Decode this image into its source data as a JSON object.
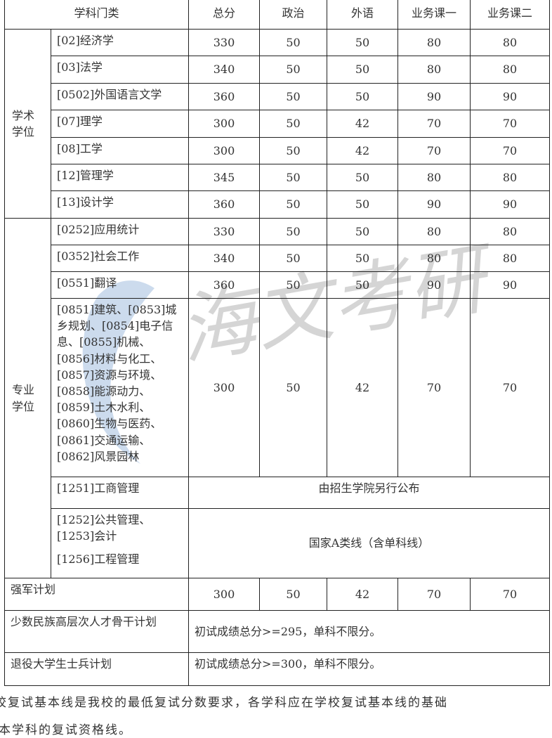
{
  "header": [
    "学科门类",
    "总分",
    "政治",
    "外语",
    "业务课一",
    "业务课二"
  ],
  "academic": {
    "label": "学术学位",
    "rows": [
      {
        "name": "[02]经济学",
        "scores": [
          "330",
          "50",
          "50",
          "80",
          "80"
        ]
      },
      {
        "name": "[03]法学",
        "scores": [
          "340",
          "50",
          "50",
          "80",
          "80"
        ]
      },
      {
        "name": "[0502]外国语言文学",
        "scores": [
          "360",
          "50",
          "50",
          "90",
          "90"
        ]
      },
      {
        "name": "[07]理学",
        "scores": [
          "300",
          "50",
          "42",
          "70",
          "70"
        ]
      },
      {
        "name": "[08]工学",
        "scores": [
          "300",
          "50",
          "42",
          "70",
          "70"
        ]
      },
      {
        "name": "[12]管理学",
        "scores": [
          "345",
          "50",
          "50",
          "80",
          "80"
        ]
      },
      {
        "name": "[13]设计学",
        "scores": [
          "360",
          "50",
          "50",
          "90",
          "90"
        ]
      }
    ]
  },
  "professional": {
    "label": "专业学位",
    "rows": [
      {
        "name": "[0252]应用统计",
        "scores": [
          "330",
          "50",
          "50",
          "80",
          "80"
        ]
      },
      {
        "name": "[0352]社会工作",
        "scores": [
          "340",
          "50",
          "50",
          "80",
          "80"
        ]
      },
      {
        "name": "[0551]翻译",
        "scores": [
          "360",
          "50",
          "50",
          "90",
          "90"
        ]
      },
      {
        "name": "[0851]建筑、[0853]城乡规划、[0854]电子信息、[0855]机械、[0856]材料与化工、[0857]资源与环境、[0858]能源动力、[0859]土木水利、[0860]生物与医药、[0861]交通运输、[0862]风景园林",
        "scores": [
          "300",
          "50",
          "42",
          "70",
          "70"
        ]
      }
    ],
    "mba": {
      "name": "[1251]工商管理",
      "note": "由招生学院另行公布"
    },
    "other": {
      "name1": "[1252]公共管理、[1253]会计",
      "name2": "[1256]工程管理",
      "note": "国家A类线（含单科线）"
    }
  },
  "special": [
    {
      "name": "强军计划",
      "scores": [
        "300",
        "50",
        "42",
        "70",
        "70"
      ]
    },
    {
      "name": "少数民族高层次人才骨干计划",
      "note": "初试成绩总分>=295，单科不限分。"
    },
    {
      "name": "退役大学生士兵计划",
      "note": "初试成绩总分>=300，单科不限分。"
    }
  ],
  "footnote": {
    "line1": "校复试基本线是我校的最低复试分数要求，各学科应在学校复试基本线的基础",
    "line2": "本学科的复试资格线。"
  },
  "watermark": {
    "text": "海文考研",
    "color": "#7a9cc8"
  }
}
